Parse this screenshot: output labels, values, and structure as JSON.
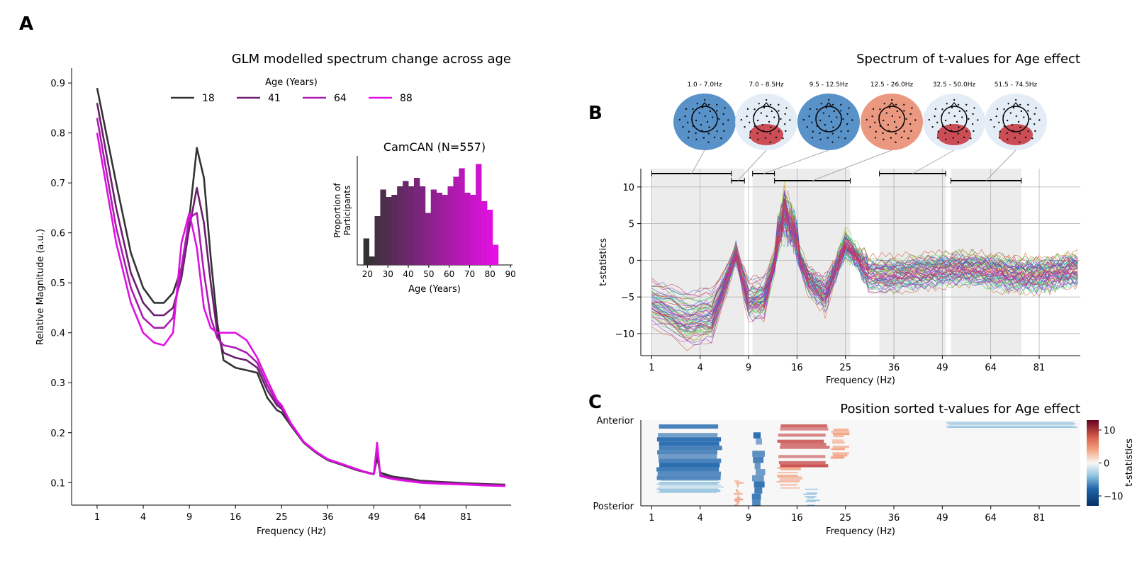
{
  "panel_letters": {
    "a": "A",
    "b": "B",
    "c": "C"
  },
  "colors": {
    "age18": "#333333",
    "age41": "#6a1f6e",
    "age64": "#aa1cb0",
    "age88": "#e010e4",
    "grid": "#b0b0b0",
    "shade": "#ececec"
  },
  "chart_data": [
    {
      "id": "A",
      "type": "line",
      "title": "GLM modelled spectrum change across age",
      "xlabel": "Frequency (Hz)",
      "ylabel": "Relative Magnitude (a.u.)",
      "x_scale": "sqrt",
      "x_ticks": [
        "1",
        "4",
        "9",
        "16",
        "25",
        "36",
        "49",
        "64",
        "81"
      ],
      "y_ticks": [
        "0.1",
        "0.2",
        "0.3",
        "0.4",
        "0.5",
        "0.6",
        "0.7",
        "0.8",
        "0.9"
      ],
      "ylim": [
        0.055,
        0.93
      ],
      "xlim": [
        0.2,
        99.5
      ],
      "legend": {
        "title": "Age (Years)",
        "placement": "top-center",
        "labels": [
          "18",
          "41",
          "64",
          "88"
        ]
      },
      "x": [
        1,
        2,
        3,
        4,
        5,
        6,
        7,
        8,
        9,
        10,
        11,
        12,
        13,
        14,
        16,
        18,
        20,
        22,
        24,
        25,
        27,
        30,
        33,
        36,
        40,
        44,
        48,
        49,
        50,
        51,
        55,
        60,
        64,
        70,
        81,
        90,
        97
      ],
      "series": [
        {
          "name": "18",
          "values": [
            0.89,
            0.7,
            0.56,
            0.49,
            0.46,
            0.46,
            0.48,
            0.53,
            0.63,
            0.77,
            0.71,
            0.55,
            0.42,
            0.345,
            0.33,
            0.325,
            0.32,
            0.27,
            0.245,
            0.24,
            0.215,
            0.18,
            0.16,
            0.145,
            0.135,
            0.125,
            0.118,
            0.117,
            0.15,
            0.12,
            0.112,
            0.108,
            0.104,
            0.102,
            0.099,
            0.097,
            0.096
          ]
        },
        {
          "name": "41",
          "values": [
            0.86,
            0.65,
            0.52,
            0.46,
            0.435,
            0.435,
            0.45,
            0.51,
            0.61,
            0.69,
            0.62,
            0.5,
            0.4,
            0.36,
            0.35,
            0.345,
            0.33,
            0.285,
            0.255,
            0.248,
            0.217,
            0.181,
            0.161,
            0.146,
            0.136,
            0.126,
            0.119,
            0.118,
            0.165,
            0.115,
            0.11,
            0.106,
            0.103,
            0.101,
            0.098,
            0.096,
            0.095
          ]
        },
        {
          "name": "64",
          "values": [
            0.83,
            0.61,
            0.49,
            0.43,
            0.41,
            0.41,
            0.43,
            0.53,
            0.63,
            0.64,
            0.52,
            0.43,
            0.39,
            0.375,
            0.37,
            0.36,
            0.34,
            0.295,
            0.26,
            0.252,
            0.218,
            0.181,
            0.161,
            0.146,
            0.136,
            0.126,
            0.118,
            0.118,
            0.17,
            0.114,
            0.108,
            0.104,
            0.101,
            0.099,
            0.097,
            0.095,
            0.094
          ]
        },
        {
          "name": "88",
          "values": [
            0.8,
            0.58,
            0.46,
            0.4,
            0.38,
            0.375,
            0.4,
            0.58,
            0.64,
            0.57,
            0.45,
            0.41,
            0.4,
            0.4,
            0.4,
            0.385,
            0.35,
            0.305,
            0.265,
            0.255,
            0.22,
            0.182,
            0.162,
            0.147,
            0.137,
            0.127,
            0.118,
            0.118,
            0.18,
            0.113,
            0.107,
            0.103,
            0.1,
            0.098,
            0.096,
            0.094,
            0.093
          ]
        }
      ]
    },
    {
      "id": "A-inset",
      "type": "bar",
      "title": "CamCAN (N=557)",
      "xlabel": "Age (Years)",
      "ylabel": "Proportion of Participants",
      "x_ticks": [
        "20",
        "30",
        "40",
        "50",
        "60",
        "70",
        "80",
        "90"
      ],
      "xlim": [
        15,
        91
      ],
      "bin_start": 18,
      "bin_width": 2.75,
      "values": [
        0.25,
        0.08,
        0.46,
        0.71,
        0.64,
        0.66,
        0.74,
        0.79,
        0.74,
        0.82,
        0.74,
        0.49,
        0.71,
        0.68,
        0.66,
        0.74,
        0.83,
        0.91,
        0.68,
        0.66,
        0.95,
        0.6,
        0.52,
        0.19
      ]
    },
    {
      "id": "B",
      "type": "line",
      "title": "Spectrum of t-values for Age effect",
      "xlabel": "Frequency (Hz)",
      "ylabel": "t-statistics",
      "x_scale": "sqrt",
      "x_ticks": [
        "1",
        "4",
        "9",
        "16",
        "25",
        "36",
        "49",
        "64",
        "81"
      ],
      "y_ticks": [
        "10",
        "5",
        "0",
        "−5",
        "−10"
      ],
      "ylim": [
        -13,
        12.5
      ],
      "xlim": [
        0.6,
        97
      ],
      "n_channels": 60,
      "clusters": [
        {
          "range": [
            1.0,
            7.0
          ],
          "label": "1.0 - 7.0Hz"
        },
        {
          "range": [
            7.0,
            8.5
          ],
          "label": "7.0 - 8.5Hz"
        },
        {
          "range": [
            9.5,
            12.5
          ],
          "label": "9.5 - 12.5Hz"
        },
        {
          "range": [
            12.5,
            26.0
          ],
          "label": "12.5 - 26.0Hz"
        },
        {
          "range": [
            32.5,
            50.0
          ],
          "label": "32.5 - 50.0Hz"
        },
        {
          "range": [
            51.5,
            74.5
          ],
          "label": "51.5 - 74.5Hz"
        }
      ],
      "shaded_ranges": [
        [
          1.0,
          8.5
        ],
        [
          9.5,
          26.0
        ],
        [
          32.5,
          50.0
        ],
        [
          51.5,
          74.5
        ]
      ],
      "topomap_signs": [
        "negative",
        "positive-posterior",
        "negative",
        "positive",
        "positive-posterior",
        "positive-posterior"
      ]
    },
    {
      "id": "C",
      "type": "heatmap",
      "title": "Position sorted t-values for Age effect",
      "xlabel": "Frequency (Hz)",
      "y_ticks": [
        "Anterior",
        "Posterior"
      ],
      "x_ticks": [
        "1",
        "4",
        "9",
        "16",
        "25",
        "36",
        "49",
        "64",
        "81"
      ],
      "colorbar": {
        "label": "t-statistics",
        "ticks": [
          "10",
          "0",
          "−10"
        ],
        "range": [
          -13,
          13
        ]
      }
    }
  ]
}
